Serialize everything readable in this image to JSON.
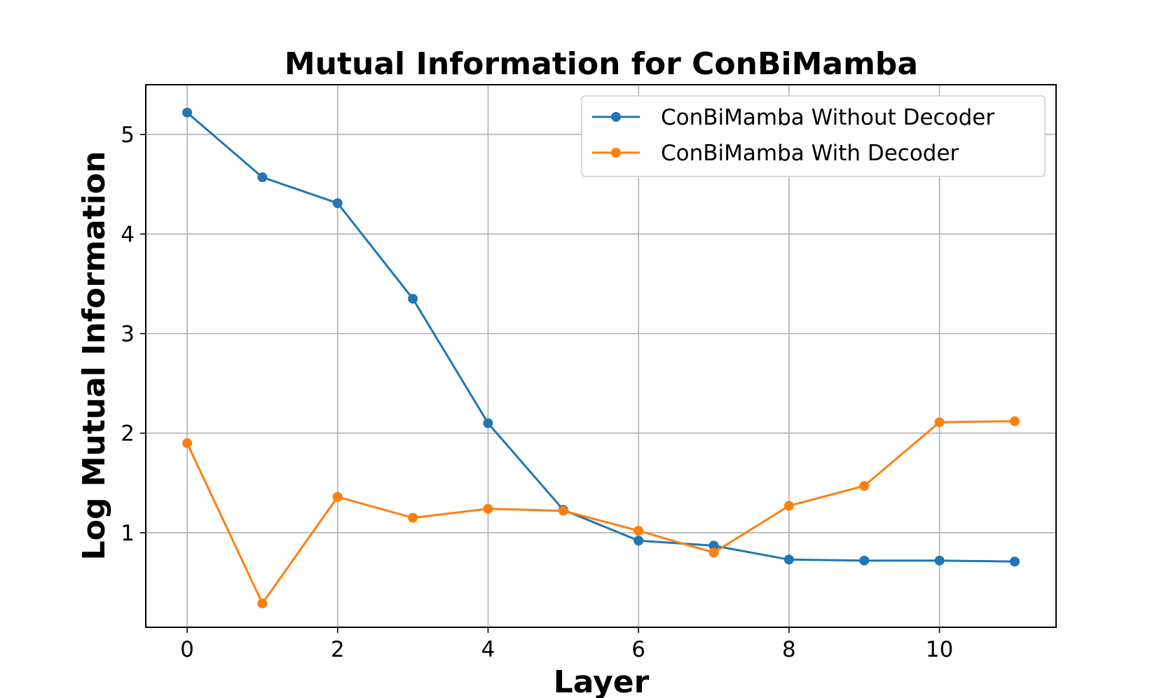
{
  "chart_data": {
    "type": "line",
    "title": "Mutual Information for ConBiMamba",
    "xlabel": "Layer",
    "ylabel": "Log Mutual Information",
    "x": [
      0,
      1,
      2,
      3,
      4,
      5,
      6,
      7,
      8,
      9,
      10,
      11
    ],
    "xlim": [
      -0.55,
      11.55
    ],
    "ylim": [
      0.05,
      5.5
    ],
    "xticks": [
      0,
      2,
      4,
      6,
      8,
      10
    ],
    "yticks": [
      1,
      2,
      3,
      4,
      5
    ],
    "xtick_labels": [
      "0",
      "2",
      "4",
      "6",
      "8",
      "10"
    ],
    "ytick_labels": [
      "1",
      "2",
      "3",
      "4",
      "5"
    ],
    "grid": true,
    "legend_position": "top-right",
    "series": [
      {
        "name": "ConBiMamba Without Decoder",
        "color": "#1f77b4",
        "values": [
          5.22,
          4.57,
          4.31,
          3.35,
          2.1,
          1.23,
          0.92,
          0.87,
          0.73,
          0.72,
          0.72,
          0.71
        ]
      },
      {
        "name": "ConBiMamba With Decoder",
        "color": "#ff7f0e",
        "values": [
          1.9,
          0.29,
          1.36,
          1.15,
          1.24,
          1.22,
          1.02,
          0.8,
          1.27,
          1.47,
          2.11,
          2.12
        ]
      }
    ]
  }
}
